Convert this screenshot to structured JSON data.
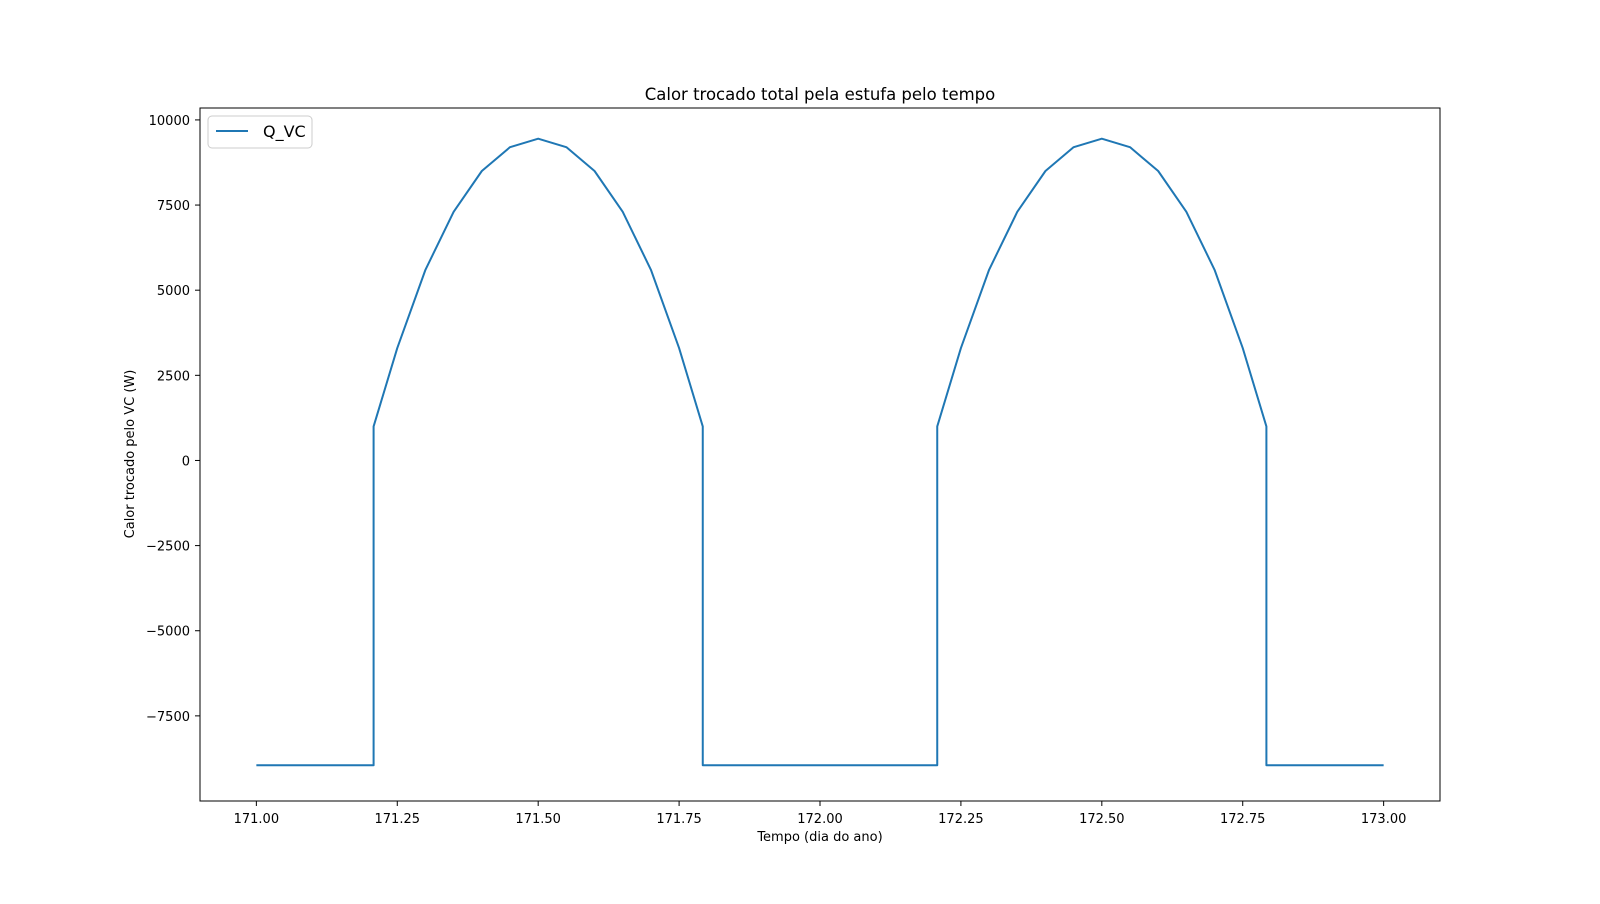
{
  "chart_data": {
    "type": "line",
    "title": "Calor trocado total pela estufa pelo tempo",
    "xlabel": "Tempo (dia do ano)",
    "ylabel": "Calor trocado pelo VC (W)",
    "xlim": [
      170.9,
      173.1
    ],
    "ylim": [
      -10000,
      10350
    ],
    "xticks": [
      171.0,
      171.25,
      171.5,
      171.75,
      172.0,
      172.25,
      172.5,
      172.75,
      173.0
    ],
    "xtick_labels": [
      "171.00",
      "171.25",
      "171.50",
      "171.75",
      "172.00",
      "172.25",
      "172.50",
      "172.75",
      "173.00"
    ],
    "yticks": [
      10000,
      7500,
      5000,
      2500,
      0,
      -2500,
      -5000,
      -7500
    ],
    "ytick_labels": [
      "10000",
      "7500",
      "5000",
      "2500",
      "0",
      "−2500",
      "−5000",
      "−7500"
    ],
    "grid": false,
    "legend_position": "top-left",
    "series": [
      {
        "name": "Q_VC",
        "color": "#1f77b4",
        "points": [
          [
            171.0,
            -8950
          ],
          [
            171.208,
            -8950
          ],
          [
            171.208,
            1000
          ],
          [
            171.25,
            3300
          ],
          [
            171.3,
            5600
          ],
          [
            171.35,
            7300
          ],
          [
            171.4,
            8500
          ],
          [
            171.45,
            9200
          ],
          [
            171.5,
            9450
          ],
          [
            171.55,
            9200
          ],
          [
            171.6,
            8500
          ],
          [
            171.65,
            7300
          ],
          [
            171.7,
            5600
          ],
          [
            171.75,
            3300
          ],
          [
            171.792,
            1000
          ],
          [
            171.792,
            -8950
          ],
          [
            172.208,
            -8950
          ],
          [
            172.208,
            1000
          ],
          [
            172.25,
            3300
          ],
          [
            172.3,
            5600
          ],
          [
            172.35,
            7300
          ],
          [
            172.4,
            8500
          ],
          [
            172.45,
            9200
          ],
          [
            172.5,
            9450
          ],
          [
            172.55,
            9200
          ],
          [
            172.6,
            8500
          ],
          [
            172.65,
            7300
          ],
          [
            172.7,
            5600
          ],
          [
            172.75,
            3300
          ],
          [
            172.792,
            1000
          ],
          [
            172.792,
            -8950
          ],
          [
            173.0,
            -8950
          ]
        ]
      }
    ]
  }
}
